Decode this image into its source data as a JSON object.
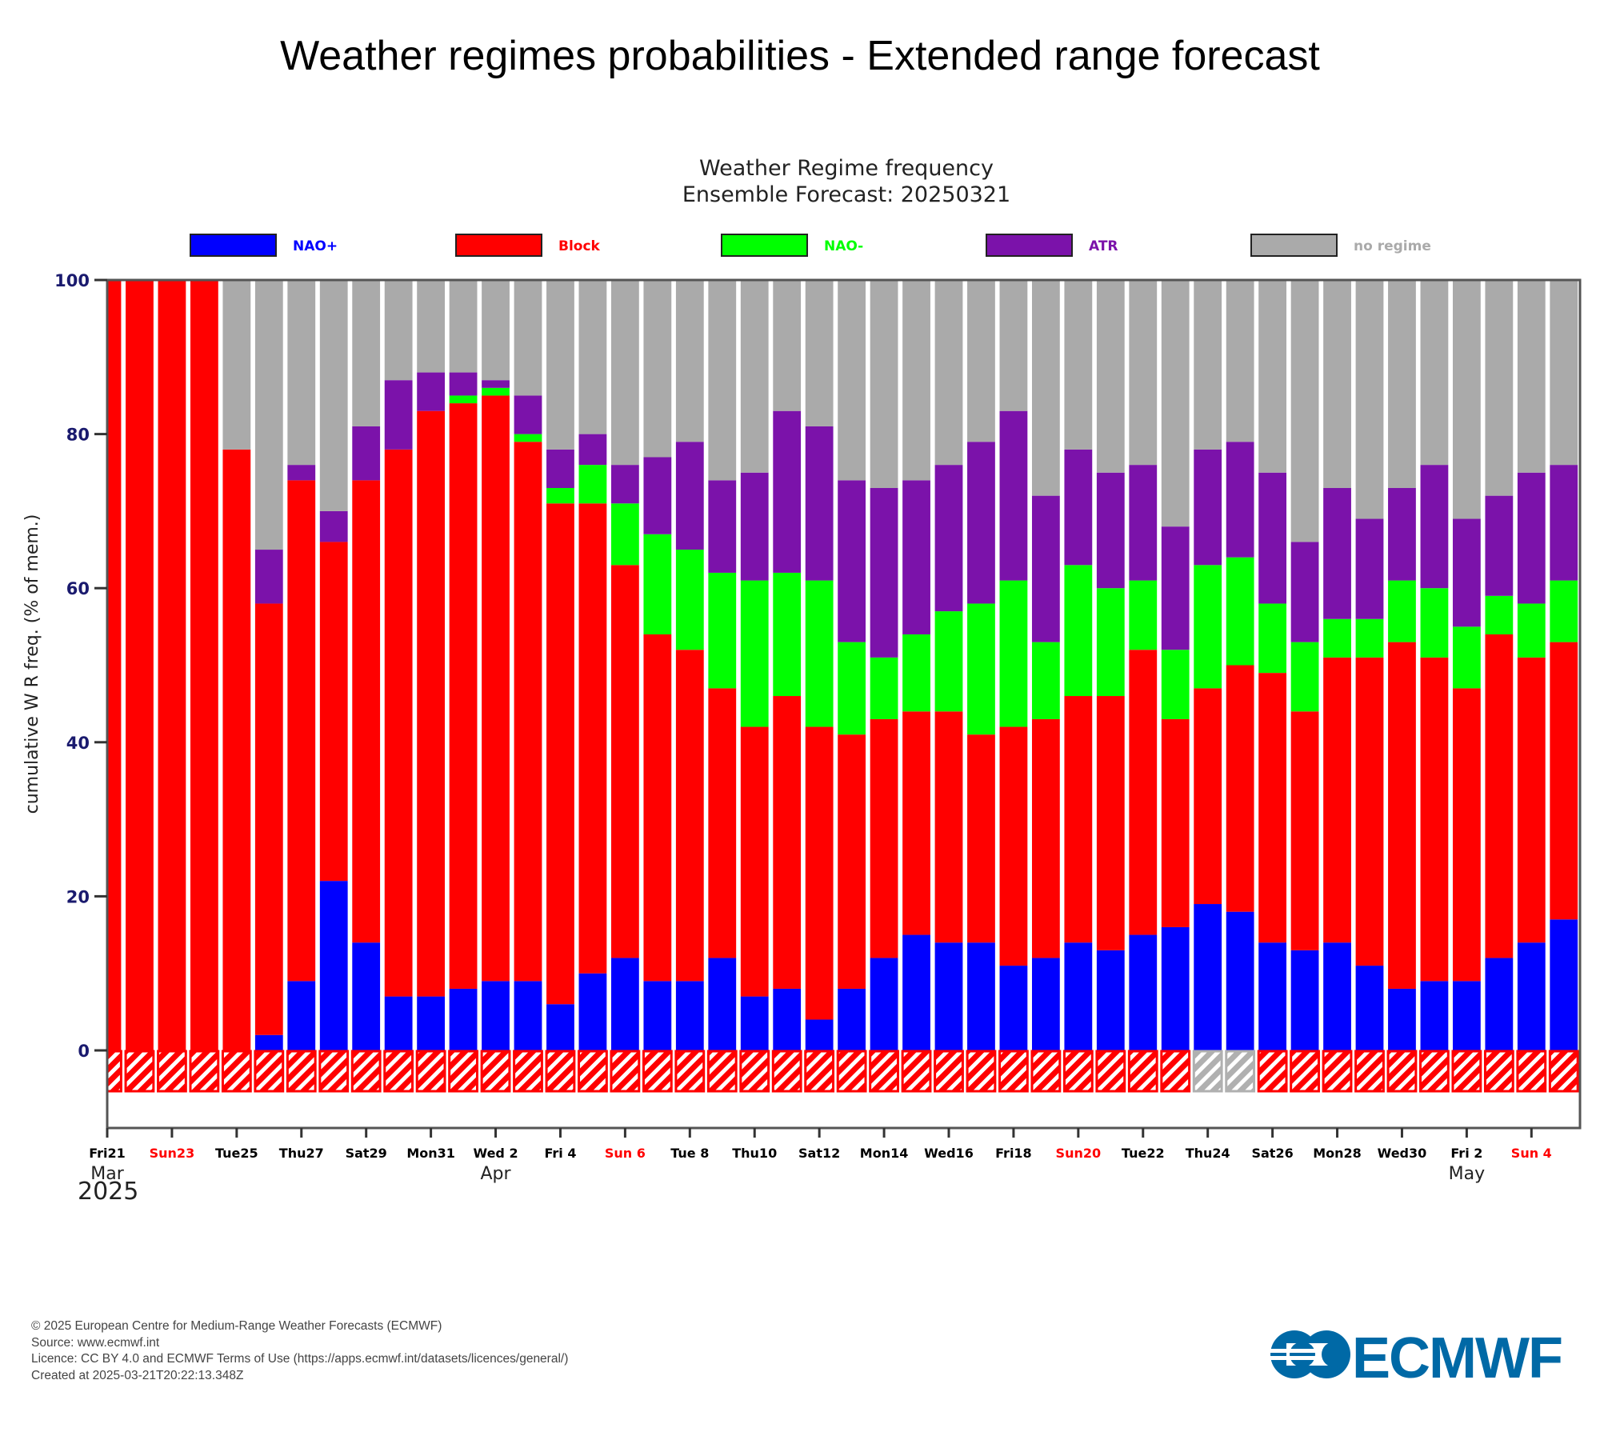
{
  "page": {
    "title": "Weather regimes probabilities - Extended range forecast"
  },
  "footer": {
    "copyright": "© 2025 European Centre for Medium-Range Weather Forecasts (ECMWF)",
    "source": "Source: www.ecmwf.int",
    "licence": "Licence: CC BY 4.0 and ECMWF Terms of Use (https://apps.ecmwf.int/datasets/licences/general/)",
    "created": "Created at 2025-03-21T20:22:13.348Z"
  },
  "logo": {
    "text": "ECMWF",
    "color": "#0069a6"
  },
  "chart_data": {
    "type": "bar",
    "stacked": true,
    "title": "Weather Regime frequency",
    "subtitle": "Ensemble Forecast: 20250321",
    "xlabel": "",
    "ylabel": "cumulative W R freq. (% of mem.)",
    "ylim": [
      0,
      100
    ],
    "yticks": [
      0,
      20,
      40,
      60,
      80,
      100
    ],
    "legend_position": "top",
    "grid": false,
    "categories": [
      "2025-03-21",
      "2025-03-22",
      "2025-03-23",
      "2025-03-24",
      "2025-03-25",
      "2025-03-26",
      "2025-03-27",
      "2025-03-28",
      "2025-03-29",
      "2025-03-30",
      "2025-03-31",
      "2025-04-01",
      "2025-04-02",
      "2025-04-03",
      "2025-04-04",
      "2025-04-05",
      "2025-04-06",
      "2025-04-07",
      "2025-04-08",
      "2025-04-09",
      "2025-04-10",
      "2025-04-11",
      "2025-04-12",
      "2025-04-13",
      "2025-04-14",
      "2025-04-15",
      "2025-04-16",
      "2025-04-17",
      "2025-04-18",
      "2025-04-19",
      "2025-04-20",
      "2025-04-21",
      "2025-04-22",
      "2025-04-23",
      "2025-04-24",
      "2025-04-25",
      "2025-04-26",
      "2025-04-27",
      "2025-04-28",
      "2025-04-29",
      "2025-04-30",
      "2025-05-01",
      "2025-05-02",
      "2025-05-03",
      "2025-05-04",
      "2025-05-05"
    ],
    "series": [
      {
        "name": "NAO+",
        "color": "#0000ff",
        "values": [
          0,
          0,
          0,
          0,
          0,
          2,
          9,
          22,
          14,
          7,
          7,
          8,
          9,
          9,
          6,
          10,
          12,
          9,
          9,
          12,
          7,
          8,
          4,
          8,
          12,
          15,
          14,
          14,
          11,
          12,
          14,
          13,
          15,
          16,
          19,
          18,
          14,
          13,
          14,
          11,
          8,
          9,
          9,
          12,
          14,
          17
        ]
      },
      {
        "name": "Block",
        "color": "#ff0000",
        "values": [
          100,
          100,
          100,
          100,
          78,
          56,
          65,
          44,
          60,
          71,
          76,
          76,
          76,
          70,
          65,
          61,
          51,
          45,
          43,
          35,
          35,
          38,
          38,
          33,
          31,
          29,
          30,
          27,
          31,
          31,
          32,
          33,
          37,
          27,
          28,
          32,
          35,
          31,
          37,
          40,
          45,
          42,
          38,
          42,
          37,
          36
        ]
      },
      {
        "name": "NAO-",
        "color": "#00ff00",
        "values": [
          0,
          0,
          0,
          0,
          0,
          0,
          0,
          0,
          0,
          0,
          0,
          1,
          1,
          1,
          2,
          5,
          8,
          13,
          13,
          15,
          19,
          16,
          19,
          12,
          8,
          10,
          13,
          17,
          19,
          10,
          17,
          14,
          9,
          9,
          16,
          14,
          9,
          9,
          5,
          5,
          8,
          9,
          8,
          5,
          7,
          8
        ]
      },
      {
        "name": "ATR",
        "color": "#7b12aa",
        "values": [
          0,
          0,
          0,
          0,
          0,
          7,
          2,
          4,
          7,
          9,
          5,
          3,
          1,
          5,
          5,
          4,
          5,
          10,
          14,
          12,
          14,
          21,
          20,
          21,
          22,
          20,
          19,
          21,
          22,
          19,
          15,
          15,
          15,
          16,
          15,
          15,
          17,
          13,
          17,
          13,
          12,
          16,
          14,
          13,
          17,
          15
        ]
      },
      {
        "name": "no regime",
        "color": "#aaaaaa",
        "values": [
          0,
          0,
          0,
          0,
          22,
          35,
          24,
          30,
          19,
          13,
          12,
          12,
          13,
          15,
          22,
          20,
          24,
          23,
          21,
          26,
          25,
          17,
          19,
          26,
          27,
          26,
          24,
          21,
          17,
          28,
          22,
          25,
          24,
          32,
          22,
          21,
          25,
          34,
          27,
          31,
          27,
          24,
          31,
          28,
          25,
          24
        ]
      }
    ],
    "legend": [
      {
        "name": "NAO+",
        "color": "#0000ff"
      },
      {
        "name": "Block",
        "color": "#ff0000"
      },
      {
        "name": "NAO-",
        "color": "#00ff00"
      },
      {
        "name": "ATR",
        "color": "#7b12aa"
      },
      {
        "name": "no regime",
        "color": "#aaaaaa"
      }
    ],
    "observed_strip": {
      "description": "hatched strip below zero indicating regime per day",
      "values": [
        "Block",
        "Block",
        "Block",
        "Block",
        "Block",
        "Block",
        "Block",
        "Block",
        "Block",
        "Block",
        "Block",
        "Block",
        "Block",
        "Block",
        "Block",
        "Block",
        "Block",
        "Block",
        "Block",
        "Block",
        "Block",
        "Block",
        "Block",
        "Block",
        "Block",
        "Block",
        "Block",
        "Block",
        "Block",
        "Block",
        "Block",
        "Block",
        "Block",
        "Block",
        "no regime",
        "no regime",
        "Block",
        "Block",
        "Block",
        "Block",
        "Block",
        "Block",
        "Block",
        "Block",
        "Block",
        "Block"
      ]
    },
    "xtick_labels": [
      {
        "date": "2025-03-21",
        "label": "Fri21",
        "weekend": false
      },
      {
        "date": "2025-03-23",
        "label": "Sun23",
        "weekend": true
      },
      {
        "date": "2025-03-25",
        "label": "Tue25",
        "weekend": false
      },
      {
        "date": "2025-03-27",
        "label": "Thu27",
        "weekend": false
      },
      {
        "date": "2025-03-29",
        "label": "Sat29",
        "weekend": false
      },
      {
        "date": "2025-03-31",
        "label": "Mon31",
        "weekend": false
      },
      {
        "date": "2025-04-02",
        "label": "Wed 2",
        "weekend": false
      },
      {
        "date": "2025-04-04",
        "label": "Fri 4",
        "weekend": false
      },
      {
        "date": "2025-04-06",
        "label": "Sun 6",
        "weekend": true
      },
      {
        "date": "2025-04-08",
        "label": "Tue 8",
        "weekend": false
      },
      {
        "date": "2025-04-10",
        "label": "Thu10",
        "weekend": false
      },
      {
        "date": "2025-04-12",
        "label": "Sat12",
        "weekend": false
      },
      {
        "date": "2025-04-14",
        "label": "Mon14",
        "weekend": false
      },
      {
        "date": "2025-04-16",
        "label": "Wed16",
        "weekend": false
      },
      {
        "date": "2025-04-18",
        "label": "Fri18",
        "weekend": false
      },
      {
        "date": "2025-04-20",
        "label": "Sun20",
        "weekend": true
      },
      {
        "date": "2025-04-22",
        "label": "Tue22",
        "weekend": false
      },
      {
        "date": "2025-04-24",
        "label": "Thu24",
        "weekend": false
      },
      {
        "date": "2025-04-26",
        "label": "Sat26",
        "weekend": false
      },
      {
        "date": "2025-04-28",
        "label": "Mon28",
        "weekend": false
      },
      {
        "date": "2025-04-30",
        "label": "Wed30",
        "weekend": false
      },
      {
        "date": "2025-05-02",
        "label": "Fri 2",
        "weekend": false
      },
      {
        "date": "2025-05-04",
        "label": "Sun 4",
        "weekend": true
      }
    ],
    "month_labels": [
      {
        "date": "2025-03-21",
        "label": "Mar"
      },
      {
        "date": "2025-04-02",
        "label": "Apr"
      },
      {
        "date": "2025-05-02",
        "label": "May"
      }
    ],
    "year_label": "2025",
    "weekend_label_color": "#ff0000",
    "weekday_label_color": "#000000"
  }
}
